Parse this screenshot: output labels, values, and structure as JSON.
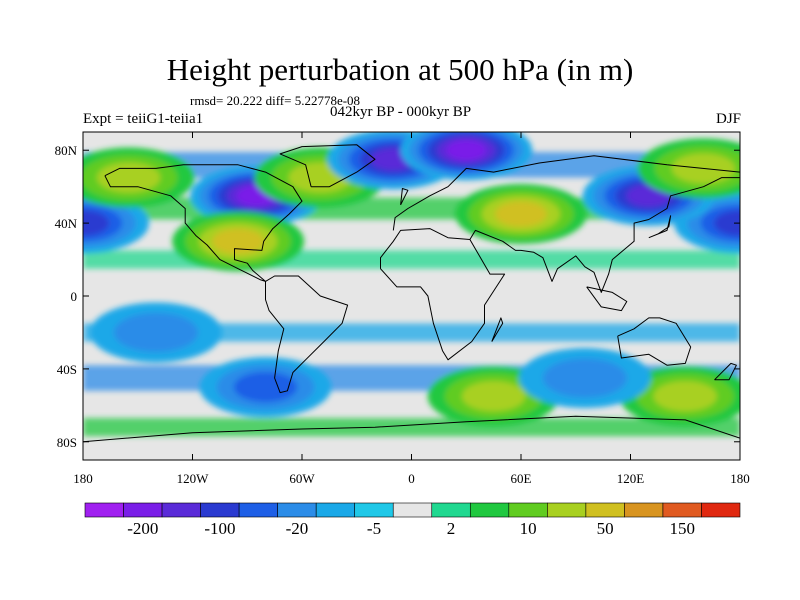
{
  "title": "Height perturbation at 500 hPa (in m)",
  "stats": "rmsd= 20.222  diff= 5.22778e-08",
  "left_label": "Expt = teiiG1-teiia1",
  "center_label": "042kyr BP - 000kyr BP",
  "right_label": "DJF",
  "lat_ticks": [
    "80N",
    "40N",
    "0",
    "40S",
    "80S"
  ],
  "lon_ticks": [
    "180",
    "120W",
    "60W",
    "0",
    "60E",
    "120E",
    "180"
  ],
  "colorbar": {
    "colors": [
      "#a020f0",
      "#7a1ee8",
      "#5a2bd8",
      "#2a3ad0",
      "#1e5fe6",
      "#2b8ce8",
      "#1aa8e8",
      "#20c8e8",
      "#e6e6e6",
      "#20d890",
      "#20c840",
      "#60cc20",
      "#a8d020",
      "#d0c020",
      "#d89420",
      "#e05a20",
      "#e02810"
    ],
    "labels": [
      "-200",
      "-100",
      "-20",
      "-5",
      "2",
      "10",
      "50",
      "150"
    ]
  },
  "chart_data": {
    "type": "heatmap",
    "title": "Height perturbation at 500 hPa (in m)",
    "subtitle": "042kyr BP - 000kyr BP",
    "rmsd": 20.222,
    "diff": 5.22778e-08,
    "experiment": "Expt = teiiG1-teiia1",
    "season": "DJF",
    "xlim": [
      -180,
      180
    ],
    "ylim": [
      -90,
      90
    ],
    "x_ticks": [
      -180,
      -120,
      -60,
      0,
      60,
      120,
      180
    ],
    "y_ticks": [
      80,
      40,
      0,
      -40,
      -80
    ],
    "levels": [
      -200,
      -150,
      -100,
      -50,
      -20,
      -10,
      -5,
      -2,
      2,
      5,
      10,
      20,
      50,
      100,
      150,
      200
    ],
    "features": [
      {
        "lon": -180,
        "lat": 40,
        "value": -60
      },
      {
        "lon": 180,
        "lat": 40,
        "value": -60
      },
      {
        "lon": -155,
        "lat": 65,
        "value": 40
      },
      {
        "lon": -85,
        "lat": 55,
        "value": -150
      },
      {
        "lon": -50,
        "lat": 65,
        "value": 30
      },
      {
        "lon": -95,
        "lat": 30,
        "value": 60
      },
      {
        "lon": -10,
        "lat": 75,
        "value": -120
      },
      {
        "lon": 30,
        "lat": 80,
        "value": -150
      },
      {
        "lon": 60,
        "lat": 45,
        "value": 50
      },
      {
        "lon": 130,
        "lat": 55,
        "value": -120
      },
      {
        "lon": 160,
        "lat": 70,
        "value": 30
      },
      {
        "lon": -80,
        "lat": -50,
        "value": -30
      },
      {
        "lon": 45,
        "lat": -55,
        "value": 30
      },
      {
        "lon": 150,
        "lat": -55,
        "value": 25
      },
      {
        "lon": 95,
        "lat": -45,
        "value": -15
      },
      {
        "lon": -140,
        "lat": -20,
        "value": -10
      }
    ]
  }
}
